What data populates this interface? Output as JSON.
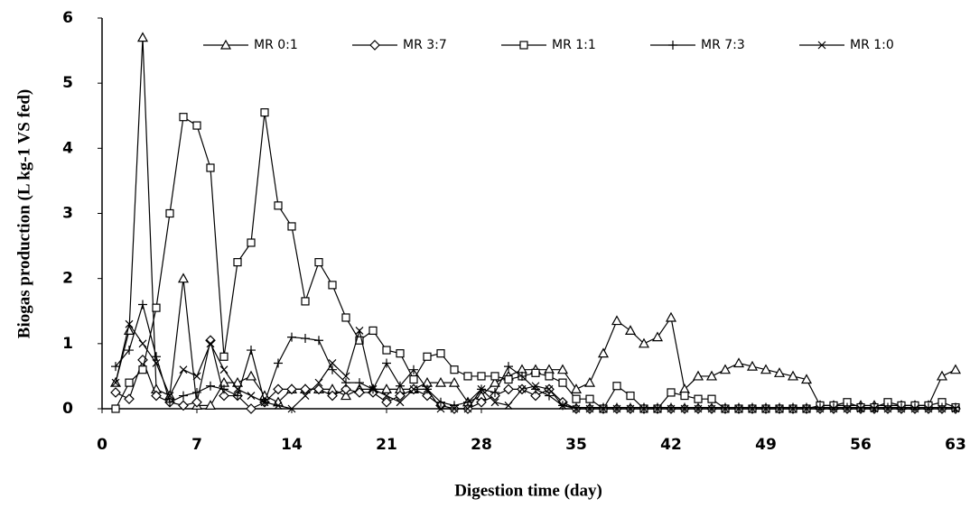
{
  "chart_data": {
    "type": "line",
    "x_label": "Digestion time (day)",
    "y_label": "Biogas production (L kg-1 VS fed)",
    "x": [
      1,
      2,
      3,
      4,
      5,
      6,
      7,
      8,
      9,
      10,
      11,
      12,
      13,
      14,
      15,
      16,
      17,
      18,
      19,
      20,
      21,
      22,
      23,
      24,
      25,
      26,
      27,
      28,
      29,
      30,
      31,
      32,
      33,
      34,
      35,
      36,
      37,
      38,
      39,
      40,
      41,
      42,
      43,
      44,
      45,
      46,
      47,
      48,
      49,
      50,
      51,
      52,
      53,
      54,
      55,
      56,
      57,
      58,
      59,
      60,
      61,
      62,
      63
    ],
    "xlim": [
      0,
      63
    ],
    "xticks": [
      0,
      7,
      14,
      21,
      28,
      35,
      42,
      49,
      56,
      63
    ],
    "ylim": [
      0,
      6
    ],
    "yticks": [
      0,
      1,
      2,
      3,
      4,
      5,
      6
    ],
    "grid": false,
    "legend": "top",
    "series": [
      {
        "name": "MR 0:1",
        "color": "#000000",
        "marker": "triangle",
        "values": [
          0.4,
          1.2,
          5.7,
          0.3,
          0.2,
          2.0,
          0.05,
          0.05,
          0.4,
          0.4,
          0.5,
          0.2,
          0.1,
          0.3,
          0.3,
          0.3,
          0.3,
          0.2,
          0.3,
          0.3,
          0.3,
          0.3,
          0.3,
          0.4,
          0.4,
          0.4,
          0.1,
          0.2,
          0.4,
          0.5,
          0.6,
          0.6,
          0.6,
          0.6,
          0.3,
          0.4,
          0.85,
          1.35,
          1.2,
          1.0,
          1.1,
          1.4,
          0.3,
          0.5,
          0.5,
          0.6,
          0.7,
          0.65,
          0.6,
          0.55,
          0.5,
          0.45,
          0.05,
          0.05,
          0.05,
          0.05,
          0.05,
          0.05,
          0.05,
          0.05,
          0.05,
          0.5,
          0.6
        ]
      },
      {
        "name": "MR 3:7",
        "color": "#000000",
        "marker": "diamond",
        "values": [
          0.25,
          0.15,
          0.75,
          0.2,
          0.1,
          0.05,
          0.1,
          1.05,
          0.2,
          0.2,
          0.0,
          0.1,
          0.3,
          0.3,
          0.3,
          0.3,
          0.2,
          0.3,
          0.25,
          0.25,
          0.1,
          0.2,
          0.3,
          0.2,
          0.05,
          0,
          0,
          0.1,
          0.2,
          0.3,
          0.3,
          0.2,
          0.3,
          0.1,
          0,
          0,
          0,
          0,
          0,
          0,
          0,
          0,
          0,
          0,
          0,
          0,
          0,
          0,
          0,
          0,
          0,
          0,
          0,
          0,
          0,
          0,
          0,
          0,
          0,
          0,
          0,
          0,
          0
        ]
      },
      {
        "name": "MR 1:1",
        "color": "#000000",
        "marker": "square",
        "values": [
          0,
          0.4,
          0.6,
          1.55,
          3.0,
          4.48,
          4.35,
          3.7,
          0.8,
          2.25,
          2.55,
          4.55,
          3.12,
          2.8,
          1.65,
          2.25,
          1.9,
          1.4,
          1.05,
          1.2,
          0.9,
          0.85,
          0.45,
          0.8,
          0.85,
          0.6,
          0.5,
          0.5,
          0.5,
          0.45,
          0.5,
          0.55,
          0.5,
          0.4,
          0.15,
          0.15,
          0,
          0.35,
          0.2,
          0,
          0,
          0.25,
          0.2,
          0.15,
          0.15,
          0,
          0,
          0,
          0,
          0,
          0,
          0,
          0.05,
          0.05,
          0.1,
          0.02,
          0.02,
          0.1,
          0.05,
          0.05,
          0.05,
          0.1,
          0.02
        ]
      },
      {
        "name": "MR 7:3",
        "color": "#000000",
        "marker": "plus",
        "values": [
          0.65,
          0.9,
          1.6,
          0.8,
          0.1,
          0.2,
          0.25,
          0.35,
          0.3,
          0.2,
          0.9,
          0.1,
          0.7,
          1.1,
          1.08,
          1.05,
          0.6,
          0.4,
          0.4,
          0.3,
          0.7,
          0.35,
          0.6,
          0.3,
          0.1,
          0.05,
          0.1,
          0.3,
          0.25,
          0.65,
          0.5,
          0.3,
          0.2,
          0.05,
          0.02,
          0.02,
          0.02,
          0.02,
          0.02,
          0.02,
          0.02,
          0.02,
          0.02,
          0.02,
          0.02,
          0.02,
          0.02,
          0.02,
          0.02,
          0.02,
          0.02,
          0.02,
          0.02,
          0.02,
          0.02,
          0.02,
          0.02,
          0.02,
          0.02,
          0.02,
          0.02,
          0.02,
          0.02
        ]
      },
      {
        "name": "MR 1:0",
        "color": "#000000",
        "marker": "cross",
        "values": [
          0.4,
          1.3,
          1.0,
          0.7,
          0.2,
          0.6,
          0.5,
          1.0,
          0.6,
          0.3,
          0.2,
          0.1,
          0.05,
          0,
          0.2,
          0.4,
          0.7,
          0.5,
          1.2,
          0.3,
          0.2,
          0.1,
          0.3,
          0.3,
          0,
          0,
          0,
          0.3,
          0.1,
          0.05,
          0.3,
          0.35,
          0.3,
          0.05,
          0,
          0,
          0,
          0,
          0,
          0,
          0,
          0,
          0,
          0,
          0,
          0,
          0,
          0,
          0,
          0,
          0,
          0,
          0,
          0,
          0,
          0,
          0,
          0,
          0,
          0,
          0,
          0,
          0
        ]
      }
    ]
  }
}
